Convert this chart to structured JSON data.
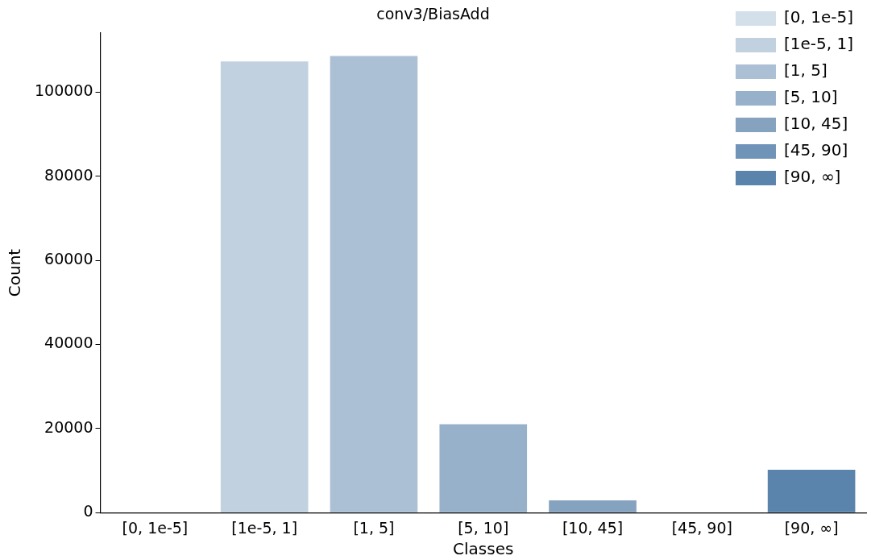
{
  "chart_data": {
    "type": "bar",
    "title": "conv3/BiasAdd",
    "xlabel": "Classes",
    "ylabel": "Count",
    "categories": [
      "[0, 1e-5]",
      "[1e-5, 1]",
      "[1, 5]",
      "[5, 10]",
      "[10, 45]",
      "[45, 90]",
      "[90, ∞]"
    ],
    "series": [
      {
        "name": "[0, 1e-5]",
        "color": "#d3dfe9",
        "values": [
          0,
          null,
          null,
          null,
          null,
          null,
          null
        ]
      },
      {
        "name": "[1e-5, 1]",
        "color": "#c1d1e0",
        "values": [
          null,
          107300,
          null,
          null,
          null,
          null,
          null
        ]
      },
      {
        "name": "[1, 5]",
        "color": "#acc0d5",
        "values": [
          null,
          null,
          108600,
          null,
          null,
          null,
          null
        ]
      },
      {
        "name": "[5, 10]",
        "color": "#98b1ca",
        "values": [
          null,
          null,
          null,
          21000,
          null,
          null,
          null
        ]
      },
      {
        "name": "[10, 45]",
        "color": "#85a2bf",
        "values": [
          null,
          null,
          null,
          null,
          2900,
          null,
          null
        ]
      },
      {
        "name": "[45, 90]",
        "color": "#7094b7",
        "values": [
          null,
          null,
          null,
          null,
          null,
          0,
          null
        ]
      },
      {
        "name": "[90, ∞]",
        "color": "#5b84ad",
        "values": [
          null,
          null,
          null,
          null,
          null,
          null,
          10200
        ]
      }
    ],
    "ylim": [
      0,
      114100
    ],
    "yticks": [
      0,
      20000,
      40000,
      60000,
      80000,
      100000
    ],
    "grid": false,
    "legend": "top right"
  }
}
